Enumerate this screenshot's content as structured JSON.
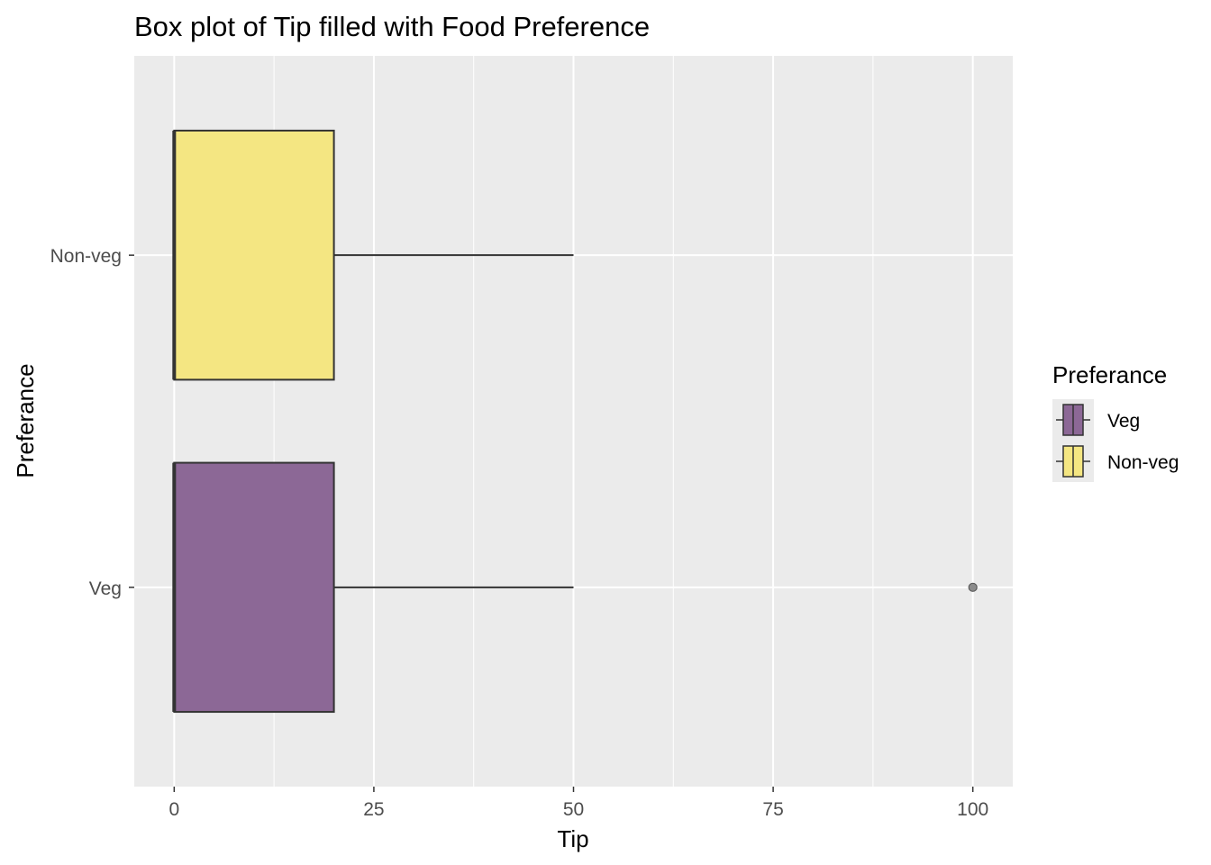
{
  "chart_data": {
    "type": "boxplot",
    "orientation": "horizontal",
    "title": "Box plot of Tip filled with Food Preference",
    "xlabel": "Tip",
    "ylabel": "Preferance",
    "xlim": [
      -5,
      105
    ],
    "x_ticks": [
      0,
      25,
      50,
      75,
      100
    ],
    "x_tick_labels": [
      "0",
      "25",
      "50",
      "75",
      "100"
    ],
    "categories": [
      "Veg",
      "Non-veg"
    ],
    "series": [
      {
        "name": "Veg",
        "color": "#8c6896",
        "min": 0,
        "q1": 0,
        "median": 0,
        "q3": 20,
        "max": 50,
        "outliers": [
          100
        ]
      },
      {
        "name": "Non-veg",
        "color": "#f4e682",
        "min": 0,
        "q1": 0,
        "median": 0,
        "q3": 20,
        "max": 50,
        "outliers": []
      }
    ],
    "legend": {
      "title": "Preferance",
      "position": "right",
      "items": [
        "Veg",
        "Non-veg"
      ]
    },
    "grid": true,
    "panel_color": "#ebebeb"
  }
}
